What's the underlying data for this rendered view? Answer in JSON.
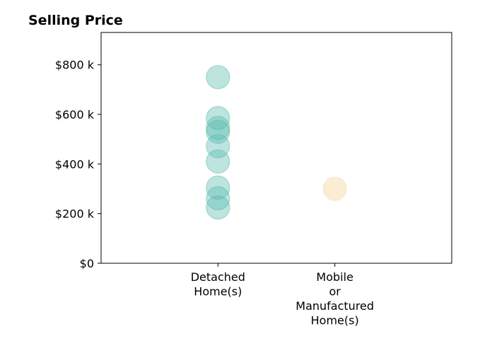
{
  "chart_data": {
    "type": "scatter",
    "title": "Selling Price",
    "xlabel": "",
    "ylabel": "",
    "categories": [
      [
        "Detached",
        "Home(s)"
      ],
      [
        "Mobile",
        "or",
        "Manufactured",
        "Home(s)"
      ]
    ],
    "xlim": [
      -1,
      2
    ],
    "ylim": [
      0,
      930000
    ],
    "y_ticks": [
      0,
      200000,
      400000,
      600000,
      800000
    ],
    "y_tick_labels": [
      "$0",
      "$200 k",
      "$400 k",
      "$600 k",
      "$800 k"
    ],
    "grid": false,
    "legend": "none",
    "series": [
      {
        "category_index": 0,
        "color": "#5bbcb0",
        "values": [
          750000,
          585000,
          545000,
          530000,
          472000,
          410000,
          305000,
          262000,
          225000
        ]
      },
      {
        "category_index": 1,
        "color": "#f5deb0",
        "values": [
          300000
        ]
      }
    ]
  }
}
